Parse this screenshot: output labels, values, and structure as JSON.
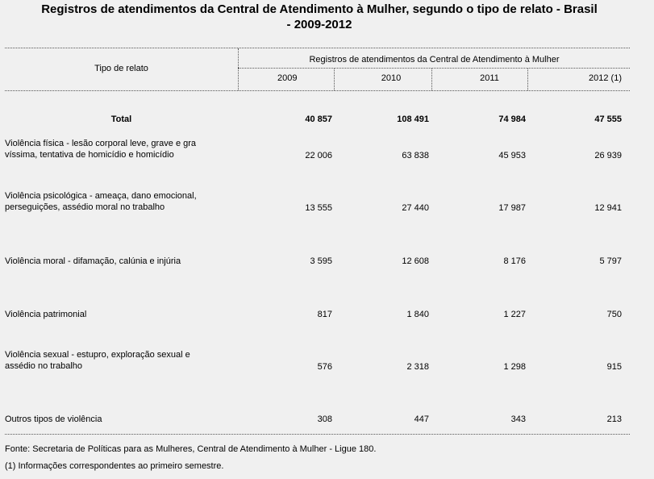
{
  "title": {
    "line1": "Registros de atendimentos da Central de Atendimento à Mulher, segundo o tipo de relato - Brasil",
    "line2": "- 2009-2012"
  },
  "table": {
    "stub_header": "Tipo de relato",
    "group_header": "Registros de atendimentos da Central de Atendimento à Mulher",
    "years": [
      "2009",
      "2010",
      "2011",
      "2012 (1)"
    ],
    "total": {
      "label": "Total",
      "values": [
        "40 857",
        "108 491",
        "74 984",
        "47 555"
      ]
    },
    "rows": [
      {
        "label_line1": "Violência física - lesão corporal leve, grave e gra",
        "label_line2": "víssima, tentativa de homicídio e homicídio",
        "values": [
          "22 006",
          "63 838",
          "45 953",
          "26 939"
        ]
      },
      {
        "label_line1": "Violência psicológica - ameaça, dano emocional,",
        "label_line2": "perseguições, assédio moral no trabalho",
        "values": [
          "13 555",
          "27 440",
          "17 987",
          "12 941"
        ]
      },
      {
        "label_line1": "Violência moral - difamação, calúnia e injúria",
        "label_line2": "",
        "values": [
          "3 595",
          "12 608",
          "8 176",
          "5 797"
        ]
      },
      {
        "label_line1": "Violência patrimonial",
        "label_line2": "",
        "values": [
          "817",
          "1 840",
          "1 227",
          "750"
        ]
      },
      {
        "label_line1": "Violência sexual - estupro, exploração sexual e",
        "label_line2": "assédio no trabalho",
        "values": [
          "576",
          "2 318",
          "1 298",
          "915"
        ]
      },
      {
        "label_line1": "Outros tipos de violência",
        "label_line2": "",
        "values": [
          "308",
          "447",
          "343",
          "213"
        ]
      }
    ]
  },
  "footnotes": {
    "source": "Fonte: Secretaria de Políticas para as Mulheres, Central de Atendimento à Mulher - Ligue 180.",
    "note": "(1) Informações correspondentes ao primeiro semestre."
  }
}
